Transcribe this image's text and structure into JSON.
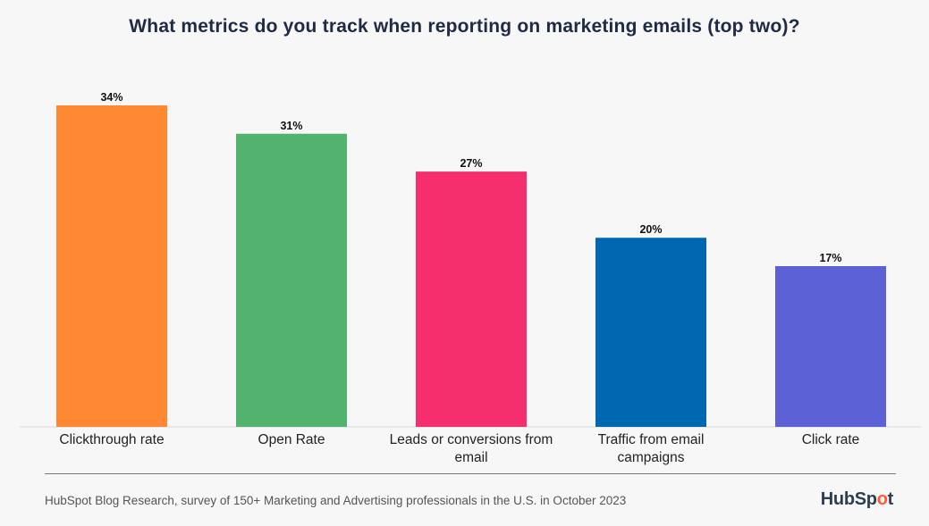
{
  "chart_data": {
    "type": "bar",
    "title": "What metrics do you track when reporting on marketing emails (top two)?",
    "categories": [
      "Clickthrough rate",
      "Open Rate",
      "Leads or conversions from email",
      "Traffic from email campaigns",
      "Click rate"
    ],
    "category_lines": [
      [
        "Clickthrough rate"
      ],
      [
        "Open Rate"
      ],
      [
        "Leads or conversions from",
        "email"
      ],
      [
        "Traffic from email",
        "campaigns"
      ],
      [
        "Click rate"
      ]
    ],
    "values": [
      34,
      31,
      27,
      20,
      17
    ],
    "value_labels": [
      "34%",
      "31%",
      "27%",
      "20%",
      "17%"
    ],
    "colors": [
      "#ff8933",
      "#52b36e",
      "#f52f6e",
      "#0068b1",
      "#5c62d6"
    ],
    "ylim": [
      0,
      34
    ],
    "grid": false,
    "legend": "none"
  },
  "footer": {
    "source": "HubSpot Blog Research, survey of 150+ Marketing and Advertising professionals in the U.S. in October 2023",
    "logo_text": "HubSpot"
  }
}
